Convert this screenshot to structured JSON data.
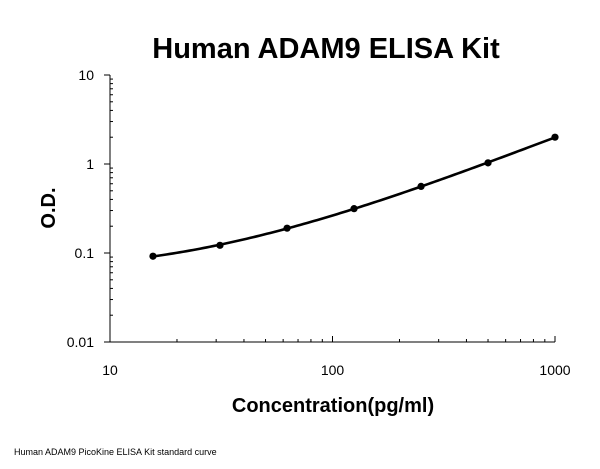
{
  "chart_data": {
    "type": "line",
    "title": "Human ADAM9 ELISA Kit",
    "xlabel": "Concentration(pg/ml)",
    "ylabel": "O.D.",
    "xscale": "log",
    "yscale": "log",
    "xlim": [
      10,
      1000
    ],
    "ylim": [
      0.01,
      10
    ],
    "x_tick_labels": [
      "10",
      "100",
      "1000"
    ],
    "y_tick_labels": [
      "0.01",
      "0.1",
      "1",
      "10"
    ],
    "grid": false,
    "legend": "none",
    "series": [
      {
        "x": [
          15.6,
          31.2,
          62.5,
          125,
          250,
          500,
          1000
        ],
        "y": [
          0.092,
          0.122,
          0.19,
          0.315,
          0.56,
          1.03,
          2.0
        ],
        "color": "#000000",
        "marker": "circle"
      }
    ]
  },
  "caption": "Human ADAM9 PicoKine ELISA Kit standard curve"
}
